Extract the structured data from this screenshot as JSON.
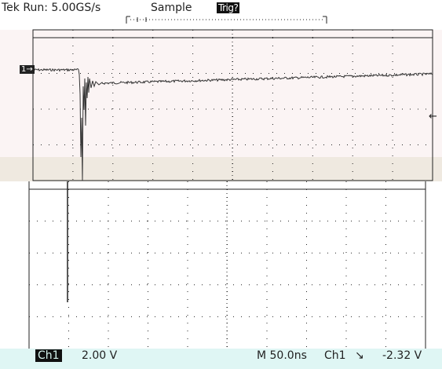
{
  "header": {
    "run_status": "Tek Run: 5.00GS/s",
    "acq_mode": "Sample",
    "trigger_status": "Trig?"
  },
  "channel": {
    "marker": "1→",
    "trigger_level_marker": "←"
  },
  "footer": {
    "channel_badge": "Ch1",
    "volts_per_div": "2.00 V",
    "timebase": "M 50.0ns",
    "trigger_source": "Ch1",
    "trigger_slope": "↘",
    "trigger_level": "-2.32 V"
  },
  "colors": {
    "top_screen_bg": "#fbf4f4",
    "band_bg": "#efe9e0",
    "footer_bg": "#dff6f4",
    "trace": "#333333",
    "grid": "#222222"
  }
}
